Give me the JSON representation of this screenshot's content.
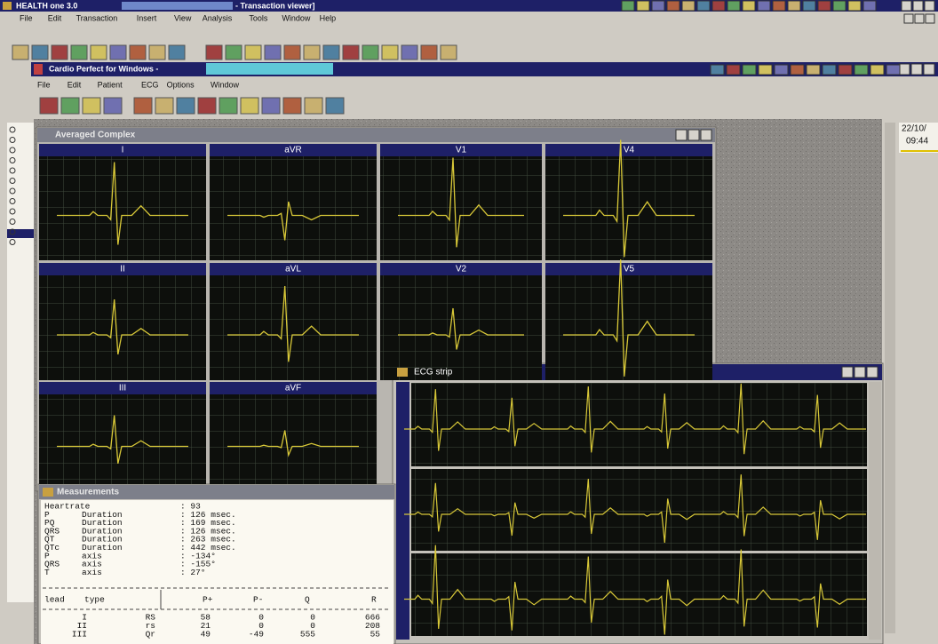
{
  "app_window": {
    "title": "HEALTH one 3.0",
    "title_suffix": "- Transaction viewer]",
    "menu": [
      "File",
      "Edit",
      "Transaction",
      "Insert",
      "View",
      "Analysis",
      "Tools",
      "Window",
      "Help"
    ]
  },
  "cardio_window": {
    "title": "Cardio Perfect for Windows -",
    "menu": [
      "File",
      "Edit",
      "Patient",
      "ECG",
      "Options",
      "Window"
    ]
  },
  "averaged_complex": {
    "title": "Averaged Complex",
    "leads": [
      "I",
      "aVR",
      "V1",
      "V4",
      "II",
      "aVL",
      "V2",
      "V5",
      "III",
      "aVF"
    ]
  },
  "ecg_strip": {
    "title": "ECG strip"
  },
  "measurements": {
    "title": "Measurements",
    "rows": [
      {
        "name": "Heartrate",
        "kind": "",
        "value": ": 93"
      },
      {
        "name": "P",
        "kind": "Duration",
        "value": ": 126 msec."
      },
      {
        "name": "PQ",
        "kind": "Duration",
        "value": ": 169 msec."
      },
      {
        "name": "QRS",
        "kind": "Duration",
        "value": ": 126 msec."
      },
      {
        "name": "QT",
        "kind": "Duration",
        "value": ": 263 msec."
      },
      {
        "name": "QTc",
        "kind": "Duration",
        "value": ": 442 msec."
      },
      {
        "name": "P",
        "kind": "axis",
        "value": ": -134°"
      },
      {
        "name": "QRS",
        "kind": "axis",
        "value": ": -155°"
      },
      {
        "name": "T",
        "kind": "axis",
        "value": ": 27°"
      }
    ],
    "table": {
      "header": [
        "lead",
        "type",
        "P+",
        "P-",
        "Q",
        "R"
      ],
      "rows": [
        [
          "I",
          "RS",
          "58",
          "0",
          "0",
          "666"
        ],
        [
          "II",
          "rs",
          "21",
          "0",
          "0",
          "208"
        ],
        [
          "III",
          "Qr",
          "49",
          "-49",
          "555",
          "55"
        ]
      ]
    }
  },
  "side_panel": {
    "date": "22/10/",
    "time": "09:44"
  }
}
